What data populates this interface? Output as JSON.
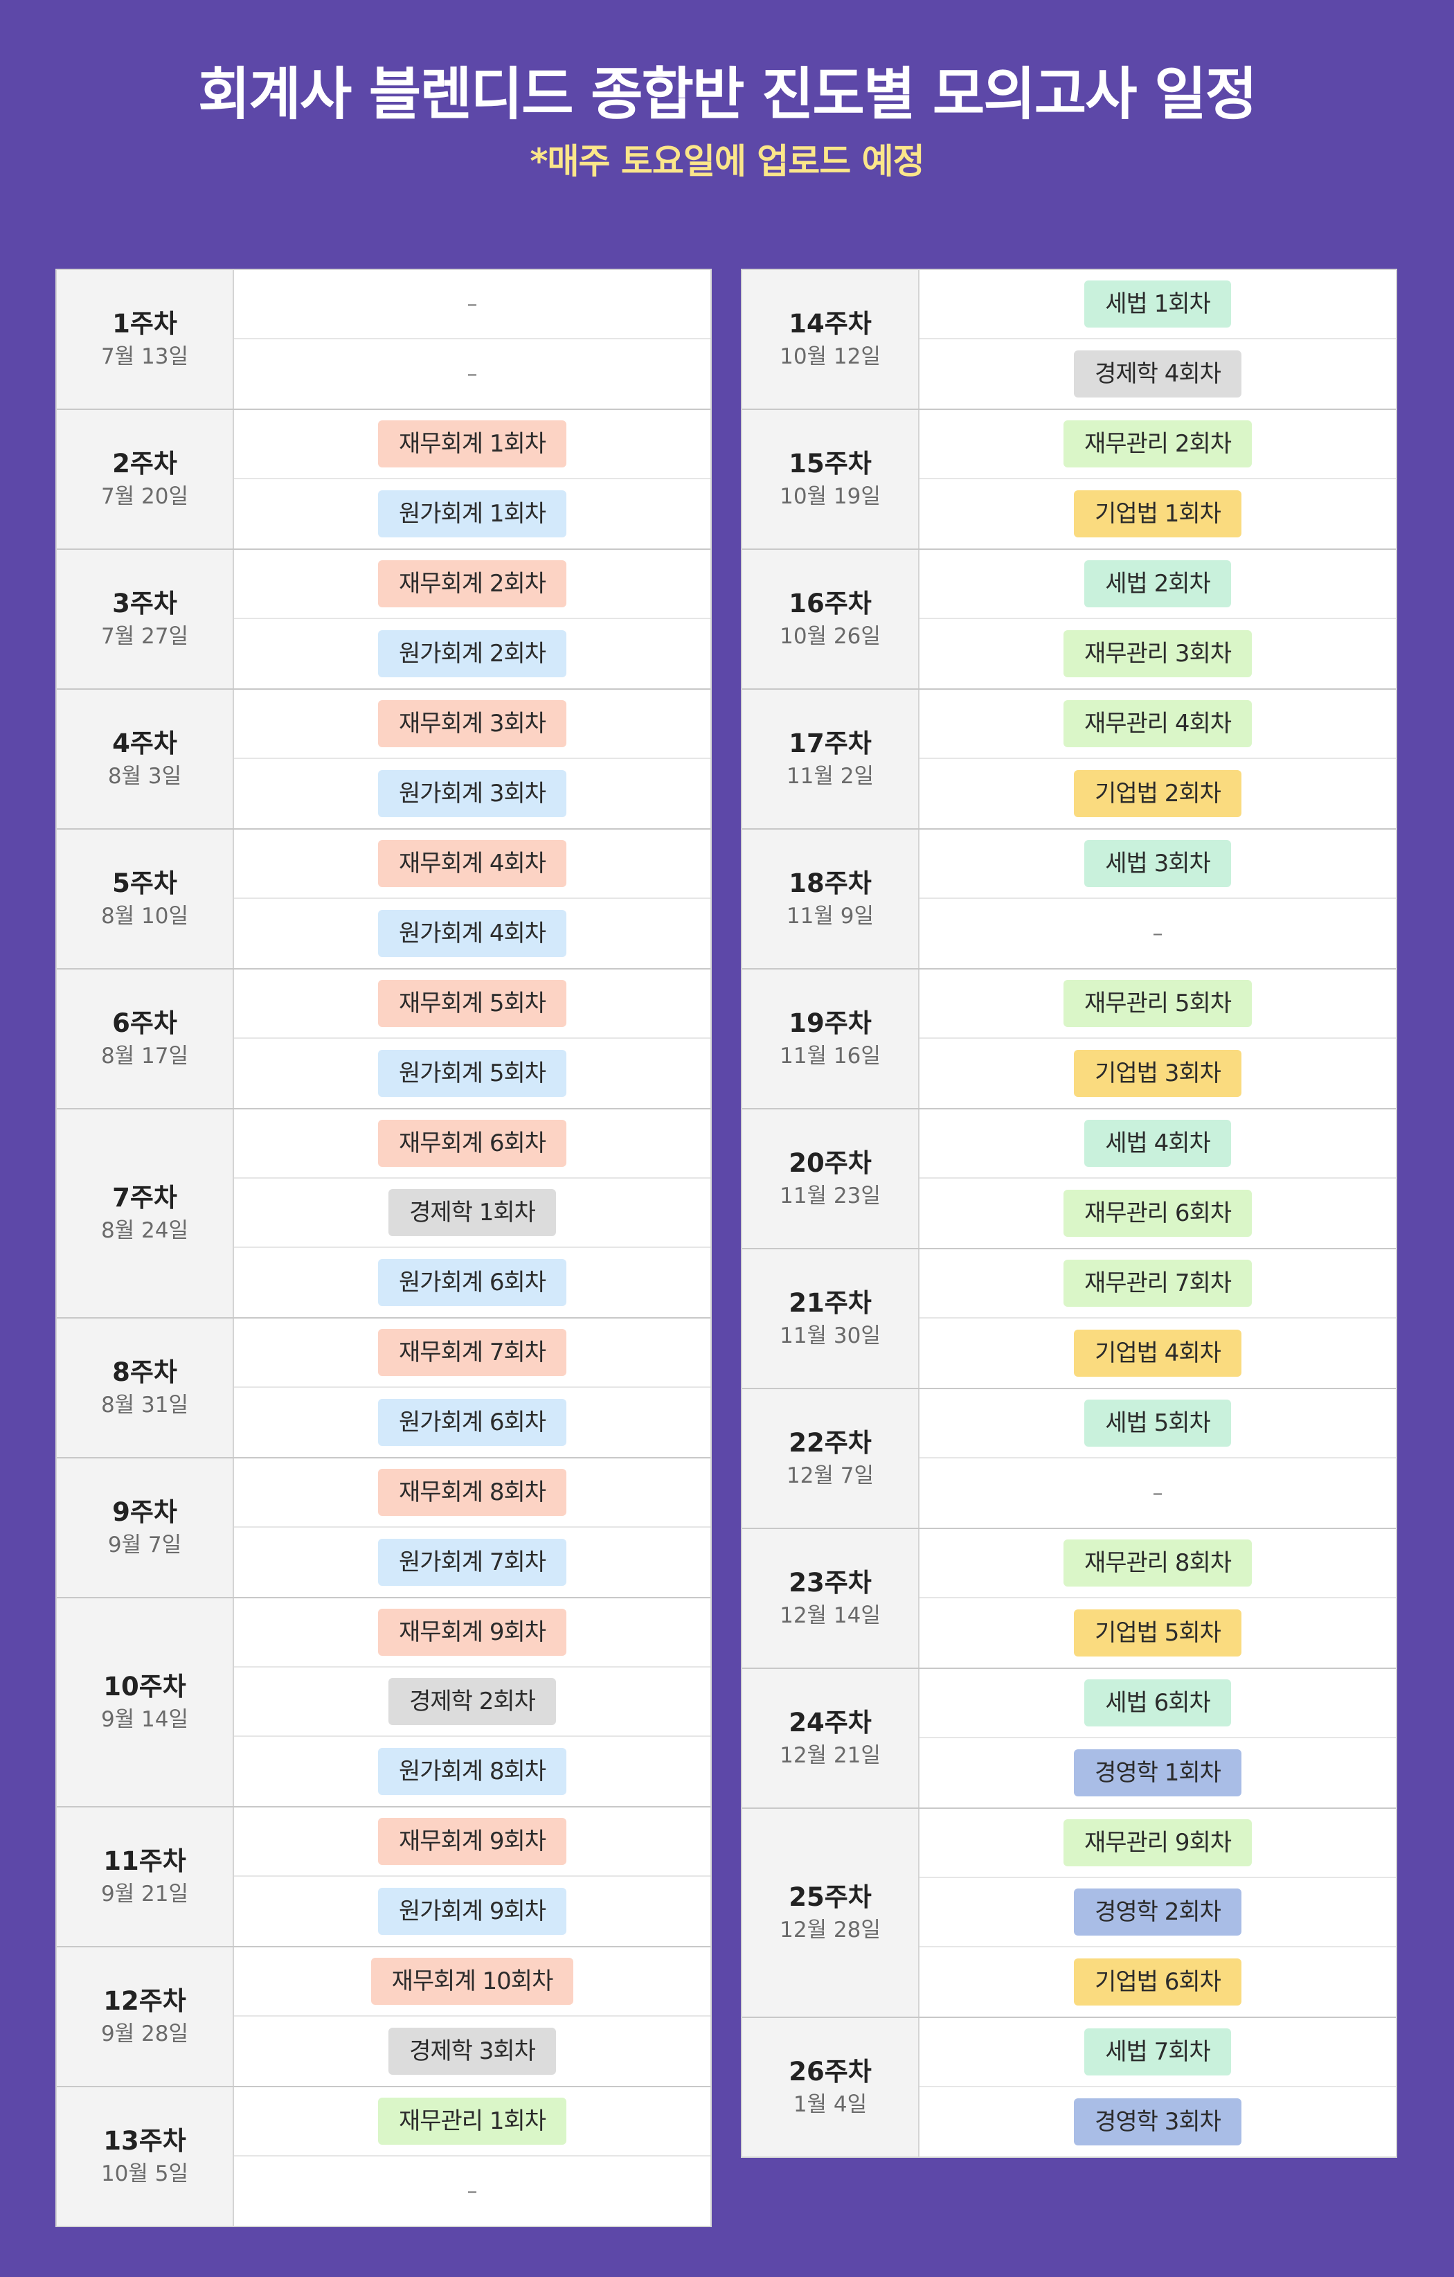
{
  "header": {
    "title": "회계사 블렌디드 종합반 진도별 모의고사 일정",
    "subtitle": "*매주 토요일에 업로드 예정"
  },
  "colors": {
    "background": "#5d48a8",
    "subtitle": "#fbe68a",
    "재무회계": "#fcd3c4",
    "원가회계": "#d3e9fb",
    "경제학": "#dcdcdc",
    "재무관리": "#daf6c8",
    "세법": "#c9f1dc",
    "기업법": "#fadb7f",
    "경영학": "#a9bde6"
  },
  "left_column": [
    {
      "week": "1주차",
      "date": "7월 13일",
      "items": [
        {
          "text": "–",
          "type": "empty"
        },
        {
          "text": "–",
          "type": "empty"
        }
      ]
    },
    {
      "week": "2주차",
      "date": "7월 20일",
      "items": [
        {
          "text": "재무회계 1회차",
          "type": "재무회계"
        },
        {
          "text": "원가회계 1회차",
          "type": "원가회계"
        }
      ]
    },
    {
      "week": "3주차",
      "date": "7월 27일",
      "items": [
        {
          "text": "재무회계 2회차",
          "type": "재무회계"
        },
        {
          "text": "원가회계 2회차",
          "type": "원가회계"
        }
      ]
    },
    {
      "week": "4주차",
      "date": "8월 3일",
      "items": [
        {
          "text": "재무회계 3회차",
          "type": "재무회계"
        },
        {
          "text": "원가회계 3회차",
          "type": "원가회계"
        }
      ]
    },
    {
      "week": "5주차",
      "date": "8월 10일",
      "items": [
        {
          "text": "재무회계 4회차",
          "type": "재무회계"
        },
        {
          "text": "원가회계 4회차",
          "type": "원가회계"
        }
      ]
    },
    {
      "week": "6주차",
      "date": "8월 17일",
      "items": [
        {
          "text": "재무회계 5회차",
          "type": "재무회계"
        },
        {
          "text": "원가회계 5회차",
          "type": "원가회계"
        }
      ]
    },
    {
      "week": "7주차",
      "date": "8월 24일",
      "items": [
        {
          "text": "재무회계 6회차",
          "type": "재무회계"
        },
        {
          "text": "경제학 1회차",
          "type": "경제학"
        },
        {
          "text": "원가회계 6회차",
          "type": "원가회계"
        }
      ]
    },
    {
      "week": "8주차",
      "date": "8월 31일",
      "items": [
        {
          "text": "재무회계 7회차",
          "type": "재무회계"
        },
        {
          "text": "원가회계 6회차",
          "type": "원가회계"
        }
      ]
    },
    {
      "week": "9주차",
      "date": "9월 7일",
      "items": [
        {
          "text": "재무회계 8회차",
          "type": "재무회계"
        },
        {
          "text": "원가회계 7회차",
          "type": "원가회계"
        }
      ]
    },
    {
      "week": "10주차",
      "date": "9월 14일",
      "items": [
        {
          "text": "재무회계 9회차",
          "type": "재무회계"
        },
        {
          "text": "경제학 2회차",
          "type": "경제학"
        },
        {
          "text": "원가회계 8회차",
          "type": "원가회계"
        }
      ]
    },
    {
      "week": "11주차",
      "date": "9월 21일",
      "items": [
        {
          "text": "재무회계 9회차",
          "type": "재무회계"
        },
        {
          "text": "원가회계 9회차",
          "type": "원가회계"
        }
      ]
    },
    {
      "week": "12주차",
      "date": "9월 28일",
      "items": [
        {
          "text": "재무회계 10회차",
          "type": "재무회계"
        },
        {
          "text": "경제학 3회차",
          "type": "경제학"
        }
      ]
    },
    {
      "week": "13주차",
      "date": "10월 5일",
      "items": [
        {
          "text": "재무관리 1회차",
          "type": "재무관리"
        },
        {
          "text": "–",
          "type": "empty"
        }
      ]
    }
  ],
  "right_column": [
    {
      "week": "14주차",
      "date": "10월 12일",
      "items": [
        {
          "text": "세법 1회차",
          "type": "세법"
        },
        {
          "text": "경제학 4회차",
          "type": "경제학"
        }
      ]
    },
    {
      "week": "15주차",
      "date": "10월 19일",
      "items": [
        {
          "text": "재무관리 2회차",
          "type": "재무관리"
        },
        {
          "text": "기업법 1회차",
          "type": "기업법"
        }
      ]
    },
    {
      "week": "16주차",
      "date": "10월 26일",
      "items": [
        {
          "text": "세법 2회차",
          "type": "세법"
        },
        {
          "text": "재무관리 3회차",
          "type": "재무관리"
        }
      ]
    },
    {
      "week": "17주차",
      "date": "11월 2일",
      "items": [
        {
          "text": "재무관리 4회차",
          "type": "재무관리"
        },
        {
          "text": "기업법 2회차",
          "type": "기업법"
        }
      ]
    },
    {
      "week": "18주차",
      "date": "11월 9일",
      "items": [
        {
          "text": "세법 3회차",
          "type": "세법"
        },
        {
          "text": "–",
          "type": "empty"
        }
      ]
    },
    {
      "week": "19주차",
      "date": "11월 16일",
      "items": [
        {
          "text": "재무관리 5회차",
          "type": "재무관리"
        },
        {
          "text": "기업법 3회차",
          "type": "기업법"
        }
      ]
    },
    {
      "week": "20주차",
      "date": "11월 23일",
      "items": [
        {
          "text": "세법 4회차",
          "type": "세법"
        },
        {
          "text": "재무관리 6회차",
          "type": "재무관리"
        }
      ]
    },
    {
      "week": "21주차",
      "date": "11월 30일",
      "items": [
        {
          "text": "재무관리 7회차",
          "type": "재무관리"
        },
        {
          "text": "기업법 4회차",
          "type": "기업법"
        }
      ]
    },
    {
      "week": "22주차",
      "date": "12월 7일",
      "items": [
        {
          "text": "세법 5회차",
          "type": "세법"
        },
        {
          "text": "–",
          "type": "empty"
        }
      ]
    },
    {
      "week": "23주차",
      "date": "12월 14일",
      "items": [
        {
          "text": "재무관리 8회차",
          "type": "재무관리"
        },
        {
          "text": "기업법 5회차",
          "type": "기업법"
        }
      ]
    },
    {
      "week": "24주차",
      "date": "12월 21일",
      "items": [
        {
          "text": "세법 6회차",
          "type": "세법"
        },
        {
          "text": "경영학 1회차",
          "type": "경영학"
        }
      ]
    },
    {
      "week": "25주차",
      "date": "12월 28일",
      "items": [
        {
          "text": "재무관리 9회차",
          "type": "재무관리"
        },
        {
          "text": "경영학 2회차",
          "type": "경영학"
        },
        {
          "text": "기업법 6회차",
          "type": "기업법"
        }
      ]
    },
    {
      "week": "26주차",
      "date": "1월 4일",
      "items": [
        {
          "text": "세법 7회차",
          "type": "세법"
        },
        {
          "text": "경영학 3회차",
          "type": "경영학"
        }
      ]
    }
  ]
}
